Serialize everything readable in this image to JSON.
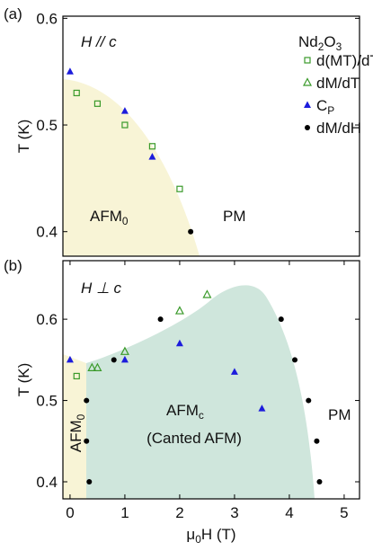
{
  "chart_data": [
    {
      "type": "scatter",
      "ylabel": "T (K)",
      "xlim": [
        -0.13,
        5.28
      ],
      "ylim": [
        0.377,
        0.602
      ],
      "yticks": [
        0.4,
        0.5,
        0.6
      ],
      "legend": "upper right",
      "annotations": [
        {
          "parts": [
            "(a)"
          ]
        },
        {
          "parts": [
            "H // c"
          ]
        },
        {
          "parts": [
            "Nd",
            "2",
            "O",
            "3"
          ]
        },
        {
          "parts": [
            "AFM",
            "0"
          ]
        },
        {
          "parts": [
            "PM"
          ]
        }
      ],
      "series": [
        {
          "name": "d(MT)/dT",
          "marker": "open-square",
          "color": "#3a9a2a",
          "x": [
            0.12,
            0.5,
            1.0,
            1.5,
            2.0
          ],
          "values": [
            0.53,
            0.52,
            0.5,
            0.48,
            0.44
          ]
        },
        {
          "name": "dM/dT",
          "marker": "open-triangle",
          "color": "#3a9a2a",
          "x": [],
          "values": []
        },
        {
          "name": "C",
          "name_sub": "P",
          "marker": "triangle",
          "color": "#1c1cdc",
          "x": [
            0.0,
            1.0,
            1.5
          ],
          "values": [
            0.55,
            0.513,
            0.47
          ]
        },
        {
          "name": "dM/dH",
          "marker": "circle",
          "color": "#000000",
          "x": [
            2.2
          ],
          "values": [
            0.4
          ]
        }
      ]
    },
    {
      "type": "scatter",
      "ylabel": "T (K)",
      "xlabel": [
        "μ",
        "0",
        "H (T)"
      ],
      "xlim": [
        -0.13,
        5.28
      ],
      "ylim": [
        0.379,
        0.672
      ],
      "yticks": [
        0.4,
        0.5,
        0.6
      ],
      "xticks": [
        0,
        1,
        2,
        3,
        4,
        5
      ],
      "annotations": [
        {
          "parts": [
            "(b)"
          ]
        },
        {
          "parts": [
            "H ⊥ c"
          ]
        },
        {
          "parts": [
            "AFM",
            "0"
          ]
        },
        {
          "parts": [
            "AFM",
            "c"
          ]
        },
        {
          "parts": [
            "(Canted AFM)"
          ]
        },
        {
          "parts": [
            "PM"
          ]
        }
      ],
      "series": [
        {
          "marker": "open-square",
          "color": "#3a9a2a",
          "x": [
            0.12
          ],
          "values": [
            0.53
          ]
        },
        {
          "marker": "open-triangle",
          "color": "#3a9a2a",
          "x": [
            0.4,
            0.5,
            1.0,
            2.0,
            2.5
          ],
          "values": [
            0.54,
            0.54,
            0.56,
            0.61,
            0.63
          ]
        },
        {
          "marker": "triangle",
          "color": "#1c1cdc",
          "x": [
            0.0,
            1.0,
            2.0,
            3.0,
            3.5
          ],
          "values": [
            0.55,
            0.55,
            0.57,
            0.535,
            0.49
          ]
        },
        {
          "marker": "circle",
          "color": "#000000",
          "x": [
            0.3,
            0.3,
            0.35,
            0.8,
            1.65,
            3.85,
            4.1,
            4.35,
            4.5,
            4.55
          ],
          "values": [
            0.5,
            0.45,
            0.4,
            0.55,
            0.6,
            0.6,
            0.55,
            0.5,
            0.45,
            0.4
          ]
        }
      ]
    }
  ]
}
